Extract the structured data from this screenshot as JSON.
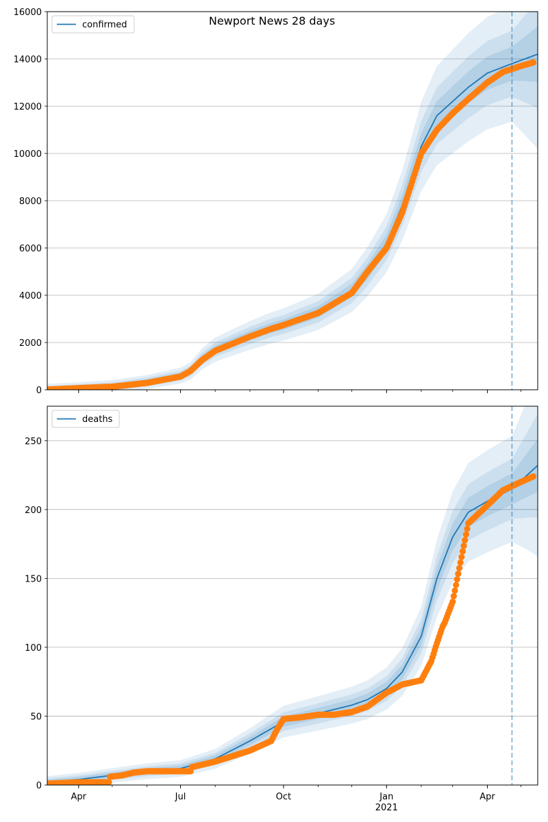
{
  "title": "Newport News 28 days",
  "colors": {
    "line": "#1f77b4",
    "band": "#1f77b4",
    "points": "#ff7f0e",
    "grid": "#b0b0b0",
    "vline": "#1f77b4"
  },
  "x_axis": {
    "tick_labels": [
      {
        "date": "2020-04-01",
        "label": "Apr"
      },
      {
        "date": "2020-07-01",
        "label": "Jul"
      },
      {
        "date": "2020-10-01",
        "label": "Oct"
      },
      {
        "date": "2021-01-01",
        "label": "Jan",
        "sublabel": "2021"
      },
      {
        "date": "2021-04-01",
        "label": "Apr"
      }
    ],
    "range": [
      "2020-03-04",
      "2021-05-16"
    ],
    "forecast_start": "2021-04-23"
  },
  "chart_data": [
    {
      "type": "line",
      "legend": "confirmed",
      "legend_position": "upper-left",
      "ylim": [
        0,
        16000
      ],
      "yticks": [
        0,
        2000,
        4000,
        6000,
        8000,
        10000,
        12000,
        14000,
        16000
      ],
      "grid": true,
      "model": {
        "x": [
          "2020-03-04",
          "2020-04-01",
          "2020-05-01",
          "2020-06-01",
          "2020-07-01",
          "2020-07-10",
          "2020-07-20",
          "2020-08-01",
          "2020-09-01",
          "2020-09-20",
          "2020-10-01",
          "2020-11-01",
          "2020-12-01",
          "2020-12-15",
          "2021-01-01",
          "2021-01-15",
          "2021-02-01",
          "2021-02-15",
          "2021-03-01",
          "2021-03-15",
          "2021-04-01",
          "2021-04-23",
          "2021-05-16"
        ],
        "y": [
          10,
          70,
          150,
          330,
          600,
          800,
          1300,
          1700,
          2300,
          2620,
          2760,
          3300,
          4200,
          5000,
          6200,
          7800,
          10300,
          11600,
          12200,
          12800,
          13400,
          13800,
          14200
        ]
      },
      "observed": {
        "x": [
          "2020-03-04",
          "2020-04-01",
          "2020-05-01",
          "2020-06-01",
          "2020-07-01",
          "2020-07-10",
          "2020-07-20",
          "2020-08-01",
          "2020-09-01",
          "2020-09-20",
          "2020-10-01",
          "2020-11-01",
          "2020-12-01",
          "2020-12-15",
          "2021-01-01",
          "2021-01-15",
          "2021-02-01",
          "2021-02-15",
          "2021-03-01",
          "2021-03-15",
          "2021-04-01",
          "2021-04-15",
          "2021-05-01",
          "2021-05-12"
        ],
        "y": [
          10,
          70,
          130,
          290,
          560,
          800,
          1250,
          1650,
          2250,
          2580,
          2740,
          3250,
          4100,
          5000,
          6000,
          7500,
          10000,
          11000,
          11700,
          12300,
          13000,
          13450,
          13700,
          13850
        ]
      }
    },
    {
      "type": "line",
      "legend": "deaths",
      "legend_position": "upper-left",
      "ylim": [
        0,
        275
      ],
      "yticks": [
        0,
        50,
        100,
        150,
        200,
        250
      ],
      "grid": true,
      "model": {
        "x": [
          "2020-03-04",
          "2020-04-01",
          "2020-05-01",
          "2020-06-01",
          "2020-07-01",
          "2020-08-01",
          "2020-09-01",
          "2020-10-01",
          "2020-11-01",
          "2020-12-01",
          "2020-12-15",
          "2021-01-01",
          "2021-01-15",
          "2021-02-01",
          "2021-02-15",
          "2021-03-01",
          "2021-03-15",
          "2021-04-01",
          "2021-04-23",
          "2021-05-16"
        ],
        "y": [
          2,
          4,
          7,
          10,
          12,
          19,
          32,
          46,
          52,
          58,
          62,
          70,
          82,
          108,
          150,
          180,
          198,
          206,
          215,
          232
        ]
      },
      "observed": {
        "x": [
          "2020-03-04",
          "2020-04-01",
          "2020-04-28",
          "2020-04-29",
          "2020-05-10",
          "2020-05-20",
          "2020-06-01",
          "2020-07-01",
          "2020-07-10",
          "2020-07-11",
          "2020-08-01",
          "2020-09-01",
          "2020-09-20",
          "2020-09-25",
          "2020-10-01",
          "2020-10-15",
          "2020-11-01",
          "2020-11-15",
          "2020-12-01",
          "2020-12-15",
          "2021-01-01",
          "2021-01-15",
          "2021-02-01",
          "2021-02-10",
          "2021-02-15",
          "2021-02-20",
          "2021-02-22",
          "2021-03-01",
          "2021-03-15",
          "2021-04-01",
          "2021-04-15",
          "2021-05-01",
          "2021-05-12"
        ],
        "y": [
          1,
          2,
          2,
          6,
          7,
          9,
          10,
          10,
          10,
          13,
          17,
          25,
          32,
          40,
          48,
          49,
          51,
          51,
          53,
          57,
          67,
          73,
          76,
          90,
          103,
          115,
          118,
          133,
          190,
          203,
          214,
          220,
          224
        ]
      }
    }
  ]
}
